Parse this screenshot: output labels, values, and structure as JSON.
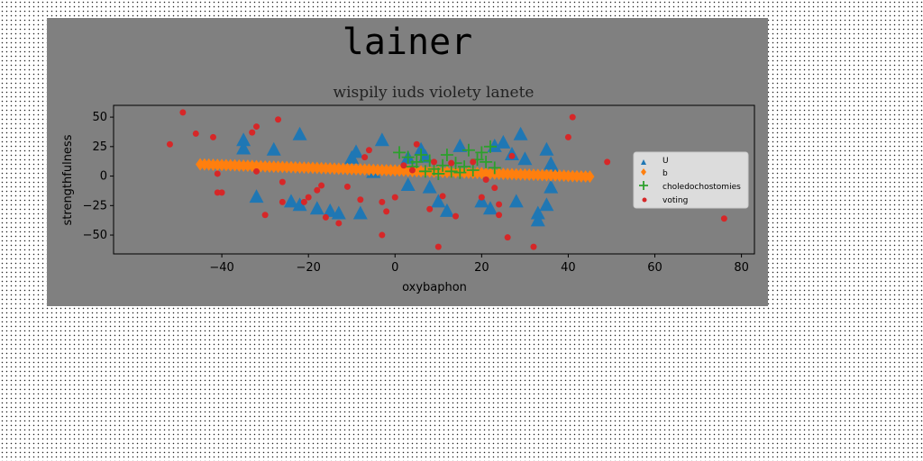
{
  "chart_data": {
    "type": "scatter",
    "suptitle": "lainer",
    "title": "wispily iuds violety lanete",
    "xlabel": "oxybaphon",
    "ylabel": "strengthfulness",
    "xlim": [
      -65,
      83
    ],
    "ylim": [
      -66,
      60
    ],
    "xticks": [
      -40,
      -20,
      0,
      20,
      40,
      60,
      80
    ],
    "yticks": [
      -50,
      -25,
      0,
      25,
      50
    ],
    "grid": false,
    "legend_position": "right",
    "colors": {
      "figure_bg": "#808080",
      "axes_bg": "#808080",
      "U": "#1f77b4",
      "b": "#ff7f0e",
      "choledochostomies": "#2ca02c",
      "voting": "#d62728"
    },
    "series": [
      {
        "name": "U",
        "marker": "triangle",
        "color": "#1f77b4",
        "points": [
          [
            -35,
            30
          ],
          [
            -35,
            23
          ],
          [
            -32,
            -18
          ],
          [
            -28,
            22
          ],
          [
            -22,
            35
          ],
          [
            -24,
            -22
          ],
          [
            -22,
            -25
          ],
          [
            -18,
            -28
          ],
          [
            -15,
            -30
          ],
          [
            -13,
            -32
          ],
          [
            -10,
            15
          ],
          [
            -9,
            20
          ],
          [
            -8,
            -32
          ],
          [
            -3,
            30
          ],
          [
            -5,
            3
          ],
          [
            3,
            15
          ],
          [
            3,
            -8
          ],
          [
            6,
            22
          ],
          [
            7,
            16
          ],
          [
            8,
            -10
          ],
          [
            10,
            -22
          ],
          [
            12,
            -30
          ],
          [
            15,
            25
          ],
          [
            20,
            -22
          ],
          [
            22,
            -28
          ],
          [
            23,
            25
          ],
          [
            25,
            28
          ],
          [
            27,
            18
          ],
          [
            28,
            -22
          ],
          [
            29,
            35
          ],
          [
            30,
            14
          ],
          [
            33,
            -32
          ],
          [
            33,
            -38
          ],
          [
            35,
            22
          ],
          [
            35,
            -25
          ],
          [
            36,
            -10
          ],
          [
            36,
            10
          ],
          [
            37,
            2
          ]
        ]
      },
      {
        "name": "b",
        "marker": "diamond",
        "color": "#ff7f0e",
        "x": [
          -45,
          -44,
          -43,
          -42,
          -41,
          -40,
          -39,
          -38,
          -37,
          -36,
          -35,
          -34,
          -33,
          -32,
          -31,
          -30,
          -29,
          -28,
          -27,
          -26,
          -25,
          -24,
          -23,
          -22,
          -21,
          -20,
          -19,
          -18,
          -17,
          -16,
          -15,
          -14,
          -13,
          -12,
          -11,
          -10,
          -9,
          -8,
          -7,
          -6,
          -5,
          -4,
          -3,
          -2,
          -1,
          0,
          1,
          2,
          3,
          4,
          5,
          6,
          7,
          8,
          9,
          10,
          11,
          12,
          13,
          14,
          15,
          16,
          17,
          18,
          19,
          20,
          21,
          22,
          23,
          24,
          25,
          26,
          27,
          28,
          29,
          30,
          31,
          32,
          33,
          34,
          35,
          36,
          37,
          38,
          39,
          40,
          41,
          42,
          43,
          44,
          45
        ],
        "y": [
          10,
          9.9,
          9.8,
          9.6,
          9.5,
          9.4,
          9.3,
          9.2,
          9.1,
          8.9,
          8.8,
          8.7,
          8.6,
          8.5,
          8.4,
          8.2,
          8.1,
          8,
          7.9,
          7.8,
          7.7,
          7.6,
          7.4,
          7.3,
          7.2,
          7.1,
          7,
          6.9,
          6.7,
          6.6,
          6.5,
          6.4,
          6.3,
          6.2,
          6,
          5.9,
          5.8,
          5.7,
          5.6,
          5.5,
          5.3,
          5.2,
          5.1,
          5,
          4.9,
          4.8,
          4.7,
          4.6,
          4.4,
          4.3,
          4.2,
          4.1,
          4,
          3.9,
          3.7,
          3.6,
          3.5,
          3.4,
          3.3,
          3.2,
          3,
          2.9,
          2.8,
          2.7,
          2.6,
          2.5,
          2.3,
          2.2,
          2.1,
          2,
          1.9,
          1.8,
          1.7,
          1.5,
          1.4,
          1.3,
          1.2,
          1.1,
          1,
          0.8,
          0.7,
          0.6,
          0.5,
          0.4,
          0.3,
          0.1,
          0,
          -0.1,
          -0.2,
          -0.3,
          -0.4
        ]
      },
      {
        "name": "choledochostomies",
        "marker": "plus",
        "color": "#2ca02c",
        "points": [
          [
            1,
            20
          ],
          [
            3,
            16
          ],
          [
            4,
            8
          ],
          [
            5,
            12
          ],
          [
            6,
            18
          ],
          [
            7,
            4
          ],
          [
            8,
            13
          ],
          [
            9,
            6
          ],
          [
            10,
            2
          ],
          [
            11,
            9
          ],
          [
            12,
            18
          ],
          [
            13,
            4
          ],
          [
            14,
            11
          ],
          [
            15,
            3
          ],
          [
            16,
            8
          ],
          [
            17,
            22
          ],
          [
            18,
            5
          ],
          [
            19,
            14
          ],
          [
            20,
            20
          ],
          [
            21,
            12
          ],
          [
            22,
            25
          ],
          [
            23,
            7
          ]
        ]
      },
      {
        "name": "voting",
        "marker": "circle",
        "color": "#d62728",
        "points": [
          [
            -52,
            27
          ],
          [
            -49,
            54
          ],
          [
            -46,
            36
          ],
          [
            -42,
            33
          ],
          [
            -41,
            2
          ],
          [
            -41,
            -14
          ],
          [
            -40,
            -14
          ],
          [
            -33,
            37
          ],
          [
            -32,
            42
          ],
          [
            -32,
            4
          ],
          [
            -30,
            -33
          ],
          [
            -27,
            48
          ],
          [
            -26,
            -22
          ],
          [
            -26,
            -5
          ],
          [
            -21,
            -22
          ],
          [
            -20,
            -18
          ],
          [
            -18,
            -12
          ],
          [
            -17,
            -8
          ],
          [
            -16,
            -35
          ],
          [
            -13,
            -40
          ],
          [
            -11,
            -9
          ],
          [
            -8,
            -20
          ],
          [
            -7,
            16
          ],
          [
            -6,
            22
          ],
          [
            -3,
            -22
          ],
          [
            -3,
            -50
          ],
          [
            -2,
            -30
          ],
          [
            0,
            -18
          ],
          [
            2,
            9
          ],
          [
            4,
            5
          ],
          [
            5,
            27
          ],
          [
            8,
            -28
          ],
          [
            9,
            12
          ],
          [
            10,
            -60
          ],
          [
            11,
            -17
          ],
          [
            13,
            11
          ],
          [
            14,
            -34
          ],
          [
            18,
            12
          ],
          [
            20,
            -18
          ],
          [
            21,
            -3
          ],
          [
            23,
            -10
          ],
          [
            24,
            -33
          ],
          [
            24,
            -24
          ],
          [
            26,
            -52
          ],
          [
            27,
            17
          ],
          [
            32,
            -60
          ],
          [
            40,
            33
          ],
          [
            41,
            50
          ],
          [
            49,
            12
          ],
          [
            76,
            -36
          ]
        ]
      }
    ]
  }
}
